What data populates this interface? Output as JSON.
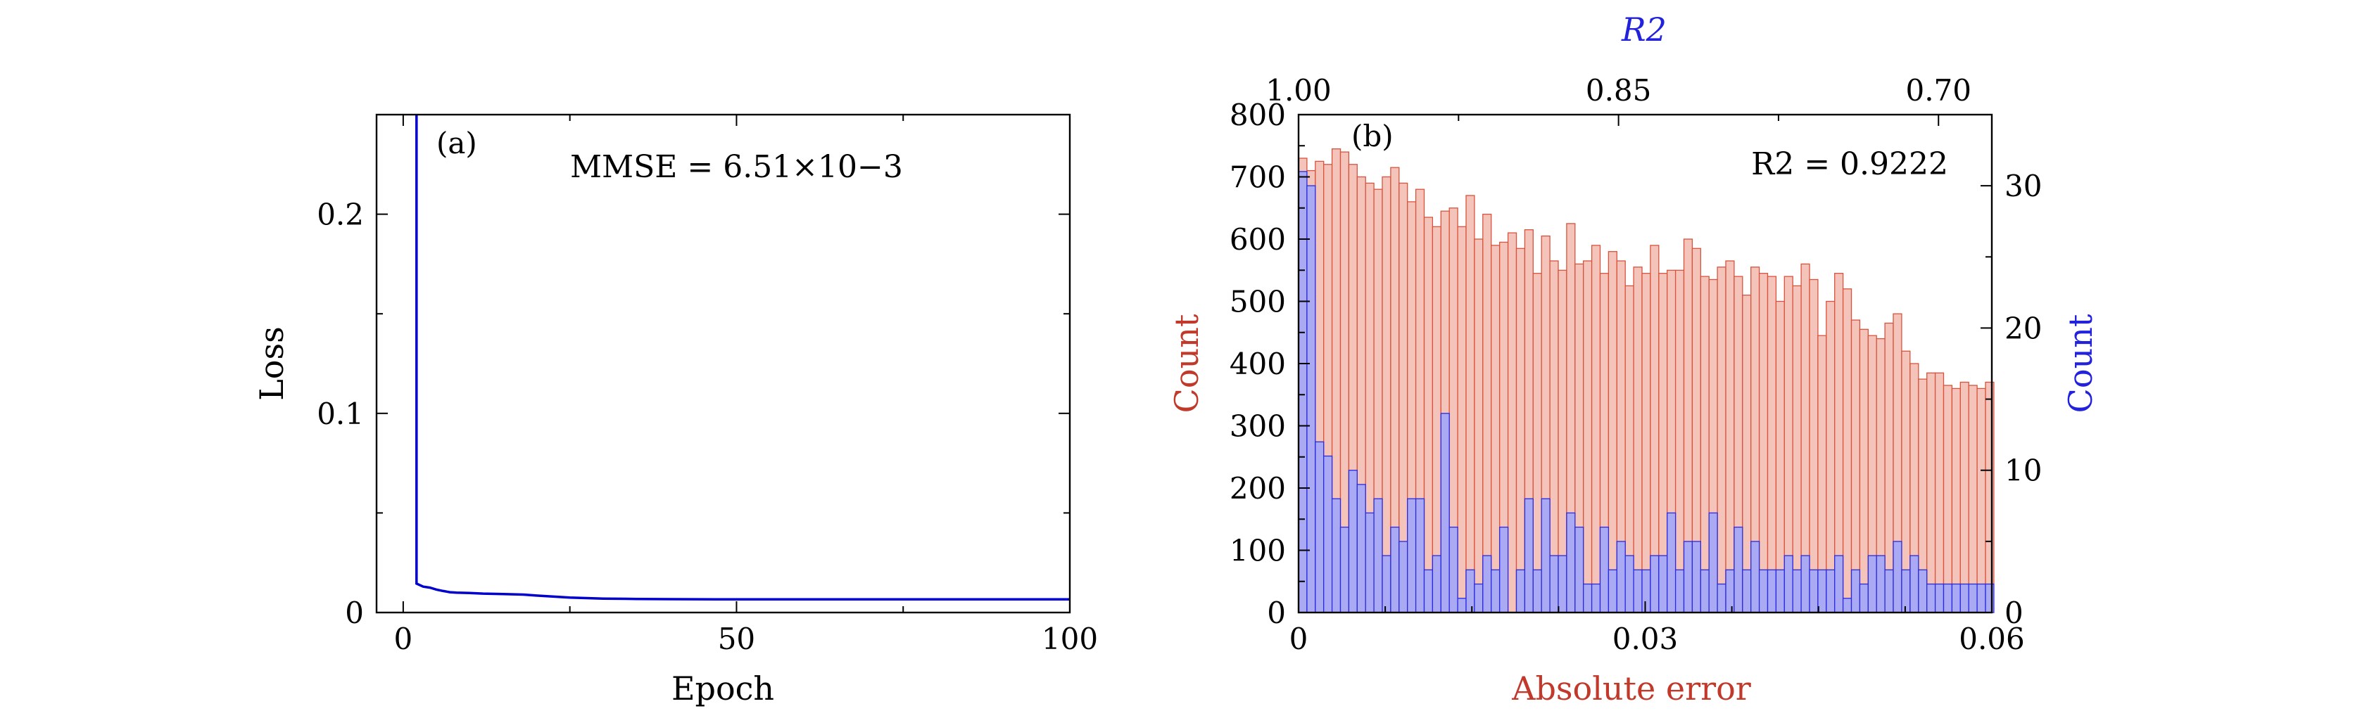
{
  "chart_data": [
    {
      "type": "line",
      "panel_label": "(a)",
      "annotation": "MMSE = 6.51×10−3",
      "xlabel": "Epoch",
      "ylabel": "Loss",
      "xlim": [
        -4,
        100
      ],
      "ylim": [
        0,
        0.25
      ],
      "xticks": [
        0,
        50,
        100
      ],
      "yticks": [
        0,
        0.1,
        0.2
      ],
      "ytick_labels": [
        "0",
        "0.1",
        "0.2"
      ],
      "series": [
        {
          "x": [
            2,
            2,
            3,
            4,
            5,
            6,
            7,
            8,
            10,
            12,
            15,
            18,
            20,
            25,
            30,
            35,
            40,
            50,
            60,
            70,
            80,
            90,
            100
          ],
          "y": [
            0.25,
            0.0145,
            0.013,
            0.0125,
            0.0115,
            0.0108,
            0.0102,
            0.01,
            0.0098,
            0.0095,
            0.0093,
            0.009,
            0.0085,
            0.0075,
            0.007,
            0.0068,
            0.0067,
            0.0066,
            0.0066,
            0.0066,
            0.0066,
            0.0066,
            0.0066
          ],
          "color": "#0000cc"
        }
      ],
      "grid": false
    },
    {
      "type": "bar",
      "panel_label": "(b)",
      "annotation": "R2 = 0.9222",
      "xlabel": "Absolute error",
      "ylabel": "Count",
      "y2label": "Count",
      "top_xlabel": "R2",
      "xlim": [
        0,
        0.06
      ],
      "xticks": [
        0,
        0.03,
        0.06
      ],
      "xtick_labels": [
        "0",
        "0.03",
        "0.06"
      ],
      "ylim": [
        0,
        800
      ],
      "yticks": [
        0,
        100,
        200,
        300,
        400,
        500,
        600,
        700,
        800
      ],
      "y2lim": [
        0,
        35
      ],
      "y2ticks": [
        0,
        10,
        20,
        30
      ],
      "top_xlim": [
        1.0,
        0.675
      ],
      "top_xticks": [
        1.0,
        0.85,
        0.7
      ],
      "top_xtick_labels": [
        "1.00",
        "0.85",
        "0.70"
      ],
      "series": [
        {
          "name": "Absolute error",
          "bin_width": 0.000725,
          "color": "#d9533c",
          "fill": "#f4c4bb",
          "values": [
            730,
            710,
            725,
            720,
            745,
            740,
            720,
            700,
            690,
            680,
            700,
            715,
            690,
            660,
            680,
            635,
            620,
            645,
            650,
            620,
            670,
            600,
            640,
            590,
            595,
            610,
            585,
            615,
            545,
            605,
            565,
            550,
            625,
            560,
            565,
            590,
            545,
            580,
            565,
            525,
            555,
            545,
            590,
            545,
            550,
            550,
            600,
            585,
            540,
            535,
            555,
            565,
            540,
            510,
            555,
            545,
            540,
            500,
            540,
            525,
            560,
            535,
            445,
            500,
            545,
            520,
            470,
            455,
            445,
            440,
            465,
            480,
            420,
            400,
            375,
            385,
            385,
            365,
            360,
            370,
            365,
            360,
            370
          ]
        },
        {
          "name": "R2",
          "bin_width": 0.000725,
          "axis": "right",
          "color": "#2a2ae0",
          "fill": "#aaaaf4",
          "values": [
            31,
            30,
            12,
            11,
            8,
            6,
            10,
            9,
            7,
            8,
            4,
            6,
            5,
            8,
            8,
            3,
            4,
            14,
            6,
            1,
            3,
            2,
            4,
            3,
            6,
            0,
            3,
            8,
            3,
            8,
            4,
            4,
            7,
            6,
            2,
            2,
            6,
            3,
            5,
            4,
            3,
            3,
            4,
            4,
            7,
            3,
            5,
            5,
            3,
            7,
            2,
            3,
            6,
            3,
            5,
            3,
            3,
            3,
            4,
            3,
            4,
            3,
            3,
            3,
            4,
            1,
            3,
            2,
            4,
            4,
            3,
            5,
            3,
            4,
            3,
            2,
            2,
            2,
            2,
            2,
            2,
            2,
            2
          ]
        }
      ],
      "grid": false
    }
  ]
}
